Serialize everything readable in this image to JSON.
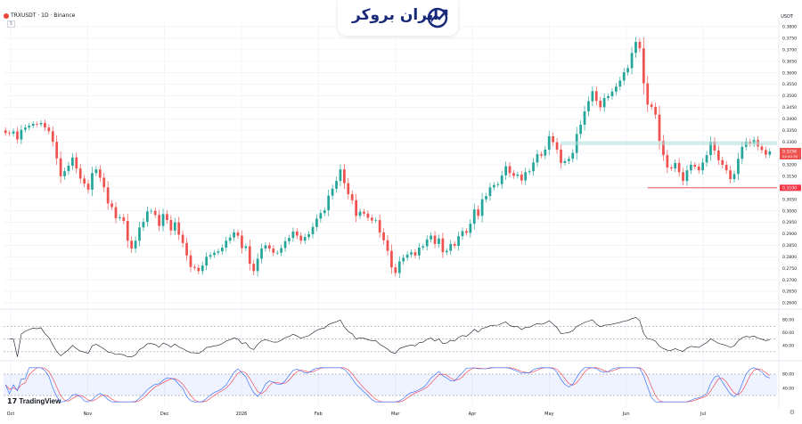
{
  "header": {
    "symbol": "TRXUSDT · 1D · Binance",
    "interval_badge": "5"
  },
  "logo": {
    "text": "ایران بروکر"
  },
  "branding": {
    "platform": "TradingView"
  },
  "currency": "USDT",
  "colors": {
    "up": "#26a69a",
    "down": "#ef5350",
    "grid": "#f0f3fa",
    "rsi": "#131722",
    "stoch_k": "#2962ff",
    "stoch_d": "#f23645",
    "zone": "#b2dfdb",
    "support": "#f23645"
  },
  "chart_data": {
    "type": "candlestick",
    "price_axis": {
      "min": 0.26,
      "max": 0.38,
      "step": 0.005,
      "ticks": [
        "0.3800",
        "0.3750",
        "0.3700",
        "0.3650",
        "0.3600",
        "0.3550",
        "0.3500",
        "0.3450",
        "0.3400",
        "0.3350",
        "0.3300",
        "0.3250",
        "0.3200",
        "0.3150",
        "0.3100",
        "0.3050",
        "0.3000",
        "0.2950",
        "0.2900",
        "0.2850",
        "0.2800",
        "0.2750",
        "0.2700",
        "0.2650",
        "0.2600"
      ]
    },
    "time_axis": [
      "Oct",
      "Nov",
      "Dec",
      "2026",
      "Feb",
      "Mar",
      "Apr",
      "May",
      "Jun",
      "Jul"
    ],
    "current_price_label": "0.3256",
    "current_price_sub": "04:40:30",
    "support_label": "0.3100",
    "close_path": [
      0.3338,
      0.3335,
      0.3345,
      0.331,
      0.3352,
      0.3362,
      0.337,
      0.3378,
      0.3376,
      0.3382,
      0.3362,
      0.3346,
      0.33,
      0.3228,
      0.315,
      0.3172,
      0.3196,
      0.3232,
      0.3184,
      0.314,
      0.3118,
      0.3092,
      0.3164,
      0.318,
      0.3144,
      0.3102,
      0.3032,
      0.3016,
      0.2968,
      0.2972,
      0.2956,
      0.287,
      0.2836,
      0.287,
      0.2928,
      0.2952,
      0.2998,
      0.3,
      0.2982,
      0.2934,
      0.2986,
      0.296,
      0.2914,
      0.295,
      0.2896,
      0.286,
      0.2806,
      0.2756,
      0.2752,
      0.2738,
      0.2762,
      0.28,
      0.2808,
      0.2818,
      0.2824,
      0.284,
      0.287,
      0.2884,
      0.2906,
      0.2892,
      0.2838,
      0.2846,
      0.277,
      0.2738,
      0.2792,
      0.2836,
      0.285,
      0.2836,
      0.2818,
      0.2818,
      0.2838,
      0.2868,
      0.2882,
      0.291,
      0.2892,
      0.287,
      0.2886,
      0.2898,
      0.293,
      0.2966,
      0.299,
      0.3002,
      0.3066,
      0.3096,
      0.313,
      0.318,
      0.312,
      0.3072,
      0.3046,
      0.2978,
      0.2996,
      0.2988,
      0.297,
      0.2958,
      0.296,
      0.2906,
      0.2872,
      0.2826,
      0.2754,
      0.273,
      0.278,
      0.2796,
      0.281,
      0.282,
      0.2806,
      0.284,
      0.2846,
      0.2876,
      0.2892,
      0.2856,
      0.288,
      0.282,
      0.2826,
      0.2856,
      0.2848,
      0.289,
      0.2912,
      0.2904,
      0.2944,
      0.3006,
      0.2978,
      0.305,
      0.3064,
      0.3102,
      0.3112,
      0.3116,
      0.3154,
      0.3194,
      0.3164,
      0.3152,
      0.3158,
      0.3132,
      0.3168,
      0.3172,
      0.321,
      0.3246,
      0.324,
      0.3266,
      0.3324,
      0.3298,
      0.3266,
      0.3208,
      0.3216,
      0.3226,
      0.3252,
      0.3334,
      0.3374,
      0.3432,
      0.3476,
      0.352,
      0.3478,
      0.345,
      0.349,
      0.3498,
      0.3518,
      0.354,
      0.3566,
      0.3602,
      0.362,
      0.3686,
      0.3734,
      0.3706,
      0.3554,
      0.3462,
      0.3452,
      0.3418,
      0.3304,
      0.3242,
      0.3188,
      0.3184,
      0.3208,
      0.3168,
      0.313,
      0.3176,
      0.32,
      0.3192,
      0.3176,
      0.321,
      0.3242,
      0.33,
      0.3262,
      0.322,
      0.32,
      0.3176,
      0.3138,
      0.316,
      0.3226,
      0.3278,
      0.33,
      0.3292,
      0.3308,
      0.328,
      0.3264,
      0.3244,
      0.3258
    ],
    "zone": {
      "from": 0.3285,
      "to": 0.3302,
      "start_index": 141
    },
    "support_level": {
      "value": 0.31,
      "start_index": 163
    },
    "rsi": {
      "levels": [
        70,
        50,
        30
      ],
      "ticks": [
        "80.00",
        "60.00",
        "40.00"
      ]
    },
    "stochastic": {
      "levels": [
        80,
        20
      ],
      "ticks": [
        "80.00",
        "40.00"
      ]
    }
  }
}
